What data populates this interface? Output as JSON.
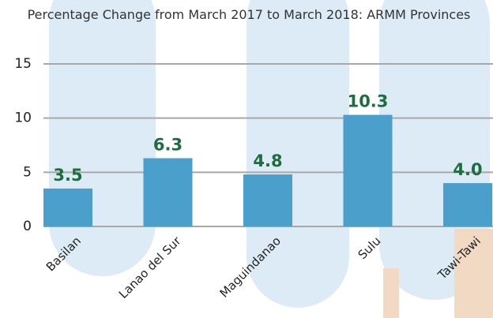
{
  "chart_data": {
    "type": "bar",
    "title": "Percentage Change from March 2017 to March 2018: ARMM Provinces",
    "categories": [
      "Basilan",
      "Lanao del Sur",
      "Maguindanao",
      "Sulu",
      "Tawi-Tawi"
    ],
    "values": [
      3.5,
      6.3,
      4.8,
      10.3,
      4.0
    ],
    "value_labels": [
      "3.5",
      "6.3",
      "4.8",
      "10.3",
      "4.0"
    ],
    "color": "#4b9fcb",
    "ylim": [
      0,
      15
    ],
    "yticks": [
      0,
      5,
      10,
      15
    ],
    "grid": true
  }
}
